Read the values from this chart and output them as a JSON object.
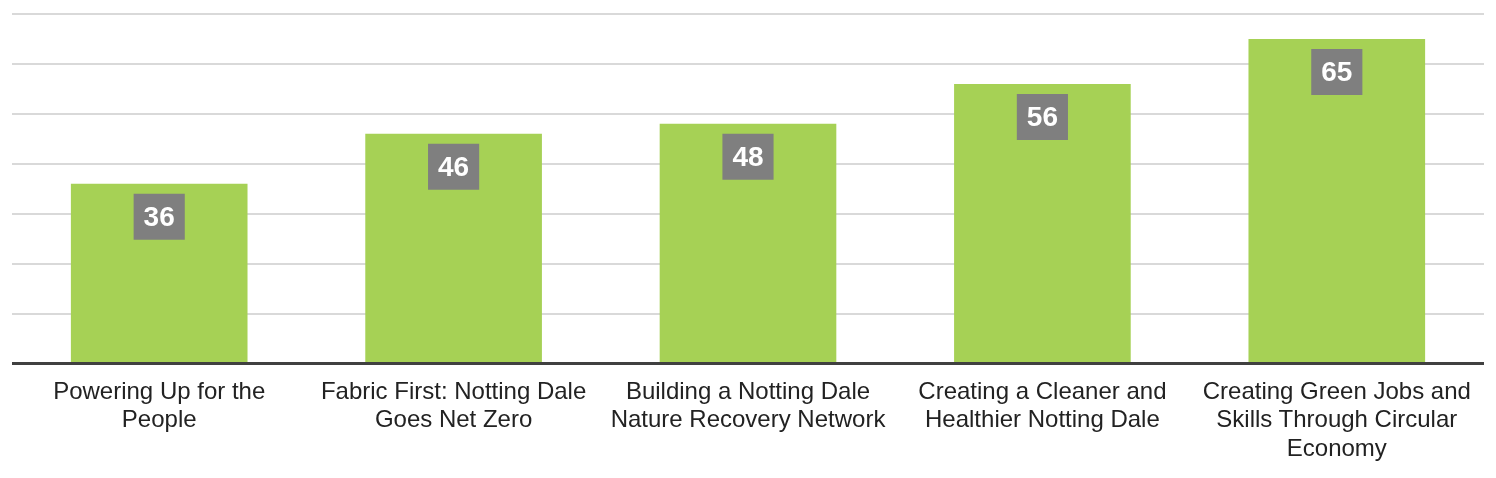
{
  "chart_data": {
    "type": "bar",
    "categories": [
      "Powering Up for the People",
      "Fabric First: Notting Dale Goes Net Zero",
      "Building a Notting Dale Nature Recovery Network",
      "Creating a Cleaner and Healthier Notting Dale",
      "Creating Green Jobs and Skills Through Circular Economy"
    ],
    "values": [
      36,
      46,
      48,
      56,
      65
    ],
    "color": "#a6d155",
    "ylim": [
      0,
      70
    ],
    "yticks": [
      {
        "value": 0,
        "label": null
      },
      {
        "value": 10,
        "label": null
      },
      {
        "value": 20,
        "label": null
      },
      {
        "value": 30,
        "label": null
      },
      {
        "value": 40,
        "label": null
      },
      {
        "value": 50,
        "label": null
      },
      {
        "value": 60,
        "label": null
      },
      {
        "value": 70,
        "label": null
      }
    ],
    "grid": "y",
    "tick_labels": "x",
    "data_labels": true
  }
}
